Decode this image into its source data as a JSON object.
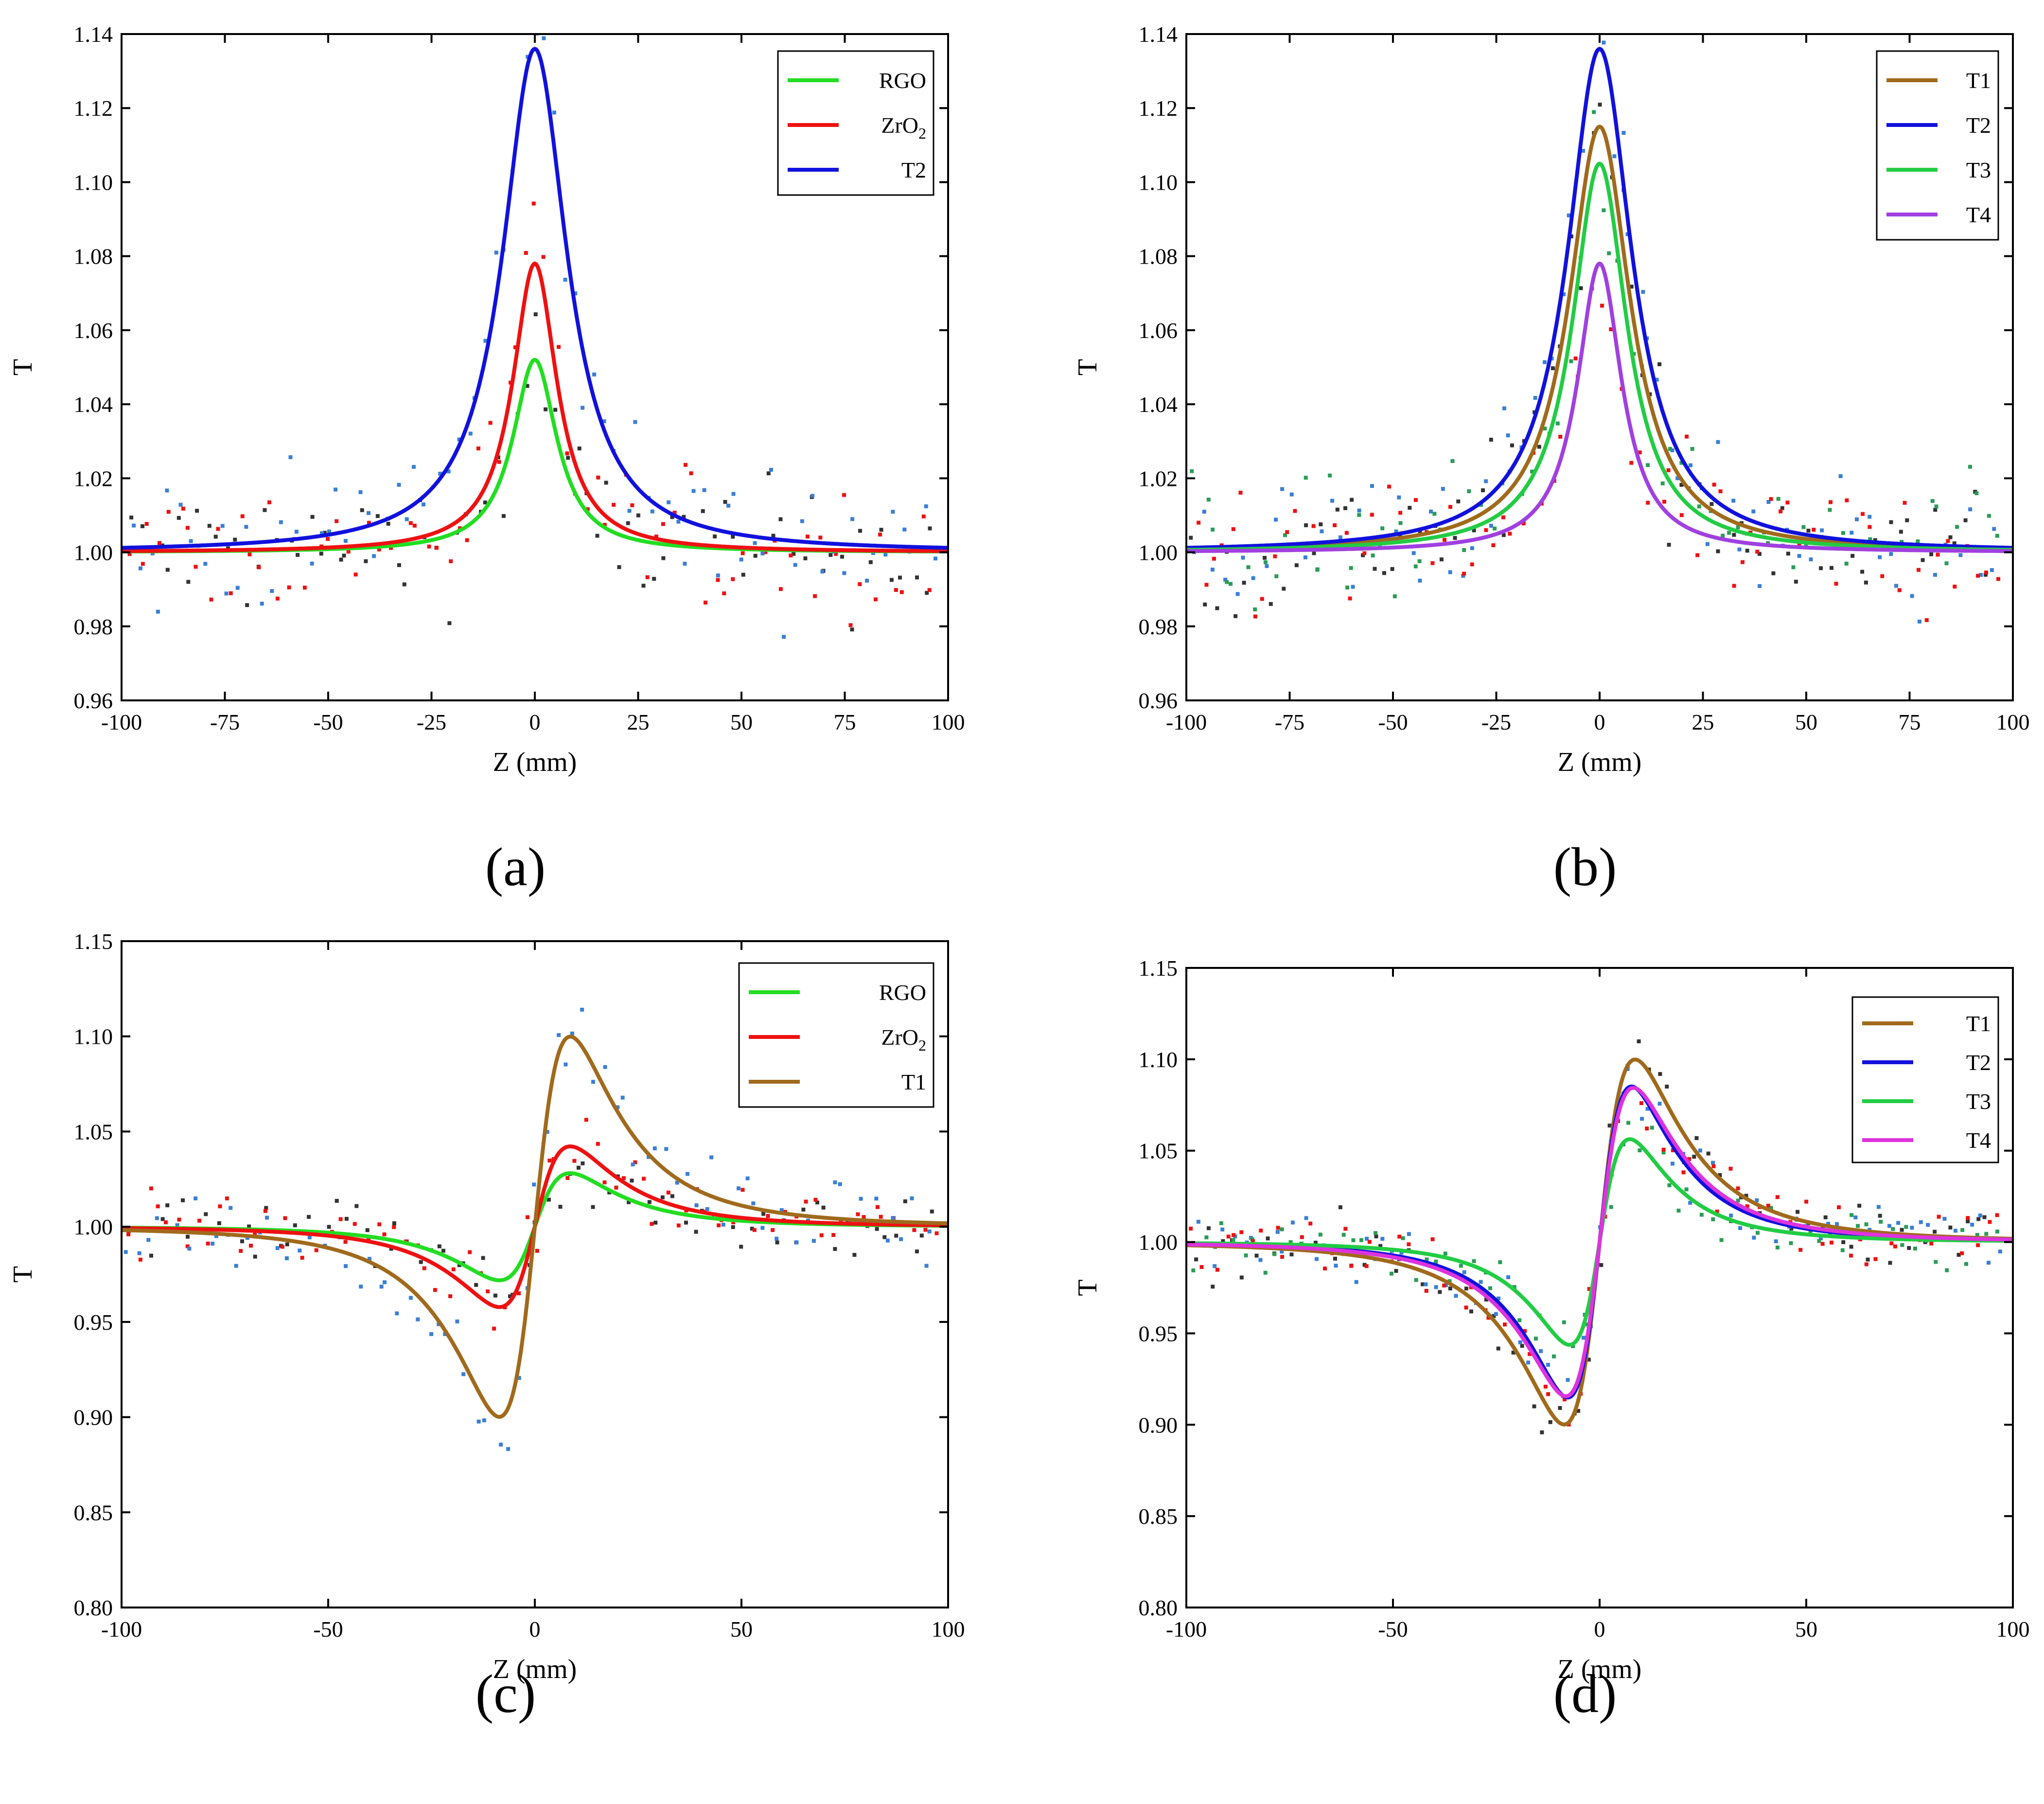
{
  "chart_data": [
    {
      "panel_label": "(a)",
      "type": "line+scatter",
      "ylabel": "T",
      "xlabel": "Z (mm)",
      "xlim": [
        -100,
        100
      ],
      "ylim": [
        0.96,
        1.14
      ],
      "xticks": [
        -100,
        -75,
        -50,
        -25,
        0,
        25,
        50,
        75,
        100
      ],
      "xtick_labels": [
        "-100",
        "-75",
        "-50",
        "-25",
        "0",
        "25",
        "50",
        "75",
        "100"
      ],
      "yticks": [
        0.96,
        0.98,
        1.0,
        1.02,
        1.04,
        1.06,
        1.08,
        1.1,
        1.12,
        1.14
      ],
      "ytick_labels": [
        "0.96",
        "0.98",
        "1.00",
        "1.02",
        "1.04",
        "1.06",
        "1.08",
        "1.10",
        "1.12",
        "1.14"
      ],
      "legend_position": "top-right",
      "series": [
        {
          "name": "RGO",
          "name_main": "RGO",
          "name_sub": "",
          "color": "#22dd22",
          "kind": "open",
          "dT": 0.052,
          "x0": 6.5,
          "scatter_color": "#333333"
        },
        {
          "name": "ZrO2",
          "name_main": "ZrO",
          "name_sub": "2",
          "color": "#ee1111",
          "kind": "open",
          "dT": 0.078,
          "x0": 6.5,
          "scatter_color": "#ee1111"
        },
        {
          "name": "T2",
          "name_main": "T2",
          "name_sub": "",
          "color": "#1111dd",
          "kind": "open",
          "dT": 0.136,
          "x0": 9.5,
          "scatter_color": "#3a7fd5"
        }
      ]
    },
    {
      "panel_label": "(b)",
      "type": "line+scatter",
      "ylabel": "T",
      "xlabel": "Z (mm)",
      "xlim": [
        -100,
        100
      ],
      "ylim": [
        0.96,
        1.14
      ],
      "xticks": [
        -100,
        -75,
        -50,
        -25,
        0,
        25,
        50,
        75,
        100
      ],
      "xtick_labels": [
        "-100",
        "-75",
        "-50",
        "-25",
        "0",
        "25",
        "50",
        "75",
        "100"
      ],
      "yticks": [
        0.96,
        0.98,
        1.0,
        1.02,
        1.04,
        1.06,
        1.08,
        1.1,
        1.12,
        1.14
      ],
      "ytick_labels": [
        "0.96",
        "0.98",
        "1.00",
        "1.02",
        "1.04",
        "1.06",
        "1.08",
        "1.10",
        "1.12",
        "1.14"
      ],
      "legend_position": "top-right",
      "series": [
        {
          "name": "T1",
          "name_main": "T1",
          "name_sub": "",
          "color": "#a06a1c",
          "kind": "open",
          "dT": 0.115,
          "x0": 9.0,
          "scatter_color": "#333333"
        },
        {
          "name": "T2",
          "name_main": "T2",
          "name_sub": "",
          "color": "#1111dd",
          "kind": "open",
          "dT": 0.136,
          "x0": 9.5,
          "scatter_color": "#3a7fd5"
        },
        {
          "name": "T3",
          "name_main": "T3",
          "name_sub": "",
          "color": "#22cc44",
          "kind": "open",
          "dT": 0.105,
          "x0": 8.0,
          "scatter_color": "#2a9d55"
        },
        {
          "name": "T4",
          "name_main": "T4",
          "name_sub": "",
          "color": "#a040e0",
          "kind": "open",
          "dT": 0.078,
          "x0": 6.5,
          "scatter_color": "#ee1111"
        }
      ]
    },
    {
      "panel_label": "(c)",
      "type": "line+scatter",
      "ylabel": "T",
      "xlabel": "Z (mm)",
      "xlim": [
        -100,
        100
      ],
      "ylim": [
        0.8,
        1.15
      ],
      "xticks": [
        -100,
        -50,
        0,
        50,
        100
      ],
      "xtick_labels": [
        "-100",
        "-50",
        "0",
        "50",
        "100"
      ],
      "yticks": [
        0.8,
        0.85,
        0.9,
        0.95,
        1.0,
        1.05,
        1.1,
        1.15
      ],
      "ytick_labels": [
        "0.80",
        "0.85",
        "0.90",
        "0.95",
        "1.00",
        "1.05",
        "1.10",
        "1.15"
      ],
      "legend_position": "top-right",
      "series": [
        {
          "name": "RGO",
          "name_main": "RGO",
          "name_sub": "",
          "color": "#22dd22",
          "kind": "closed",
          "amp": 0.04,
          "z0": 10.0,
          "scatter_color": "#333333"
        },
        {
          "name": "ZrO2",
          "name_main": "ZrO",
          "name_sub": "2",
          "color": "#ee1111",
          "kind": "closed",
          "amp": 0.06,
          "z0": 10.0,
          "scatter_color": "#ee1111"
        },
        {
          "name": "T1",
          "name_main": "T1",
          "name_sub": "",
          "color": "#a06a1c",
          "kind": "closed",
          "amp": 0.142,
          "z0": 10.0,
          "scatter_color": "#3a7fd5"
        }
      ]
    },
    {
      "panel_label": "(d)",
      "type": "line+scatter",
      "ylabel": "T",
      "xlabel": "Z (mm)",
      "xlim": [
        -100,
        100
      ],
      "ylim": [
        0.8,
        1.15
      ],
      "xticks": [
        -100,
        -50,
        0,
        50,
        100
      ],
      "xtick_labels": [
        "-100",
        "-50",
        "0",
        "50",
        "100"
      ],
      "yticks": [
        0.8,
        0.85,
        0.9,
        0.95,
        1.0,
        1.05,
        1.1,
        1.15
      ],
      "ytick_labels": [
        "0.80",
        "0.85",
        "0.90",
        "0.95",
        "1.00",
        "1.05",
        "1.10",
        "1.15"
      ],
      "legend_position": "top-right",
      "series": [
        {
          "name": "T1",
          "name_main": "T1",
          "name_sub": "",
          "color": "#a06a1c",
          "kind": "closed",
          "amp": 0.142,
          "z0": 10.0,
          "scatter_color": "#333333"
        },
        {
          "name": "T2",
          "name_main": "T2",
          "name_sub": "",
          "color": "#1111dd",
          "kind": "closed",
          "amp": 0.121,
          "z0": 9.0,
          "scatter_color": "#3a7fd5"
        },
        {
          "name": "T3",
          "name_main": "T3",
          "name_sub": "",
          "color": "#22cc44",
          "kind": "closed",
          "amp": 0.08,
          "z0": 8.5,
          "scatter_color": "#2a9d55"
        },
        {
          "name": "T4",
          "name_main": "T4",
          "name_sub": "",
          "color": "#dd33dd",
          "kind": "closed",
          "amp": 0.12,
          "z0": 9.5,
          "scatter_color": "#ee1111"
        }
      ]
    }
  ]
}
